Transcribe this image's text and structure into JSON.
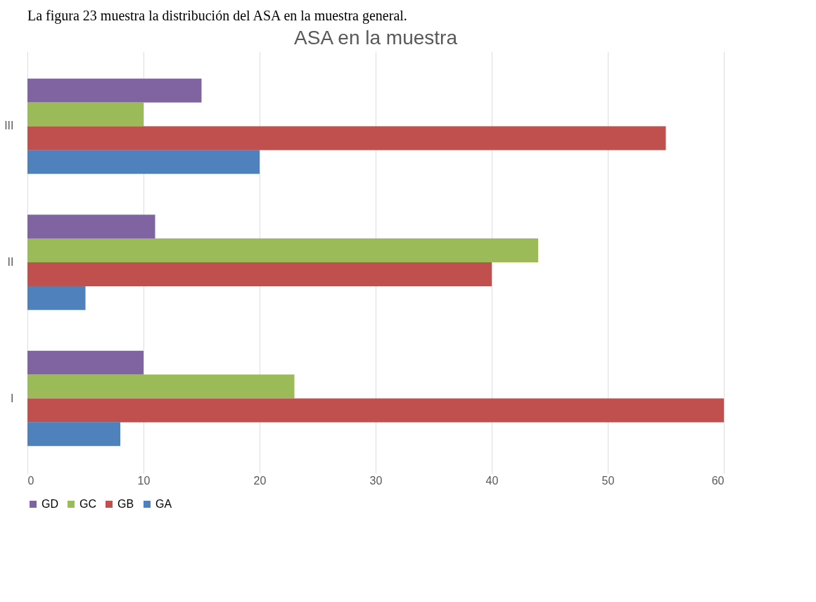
{
  "chart_data": {
    "type": "bar",
    "orientation": "horizontal",
    "title": "ASA en la muestra",
    "annotations": [
      "La figura 23 muestra la distribución del ASA en la muestra general."
    ],
    "categories": [
      "III",
      "II",
      "I"
    ],
    "series": [
      {
        "name": "GD",
        "color": "#8064a2",
        "values": [
          15,
          11,
          10
        ]
      },
      {
        "name": "GC",
        "color": "#9bbb59",
        "values": [
          10,
          44,
          23
        ]
      },
      {
        "name": "GB",
        "color": "#c0504d",
        "values": [
          55,
          40,
          60
        ]
      },
      {
        "name": "GA",
        "color": "#4f81bd",
        "values": [
          20,
          5,
          8
        ]
      }
    ],
    "xlim": [
      0,
      60
    ],
    "xticks": [
      0,
      10,
      20,
      30,
      40,
      50,
      60
    ],
    "grid": "x",
    "legend": "bottom"
  }
}
